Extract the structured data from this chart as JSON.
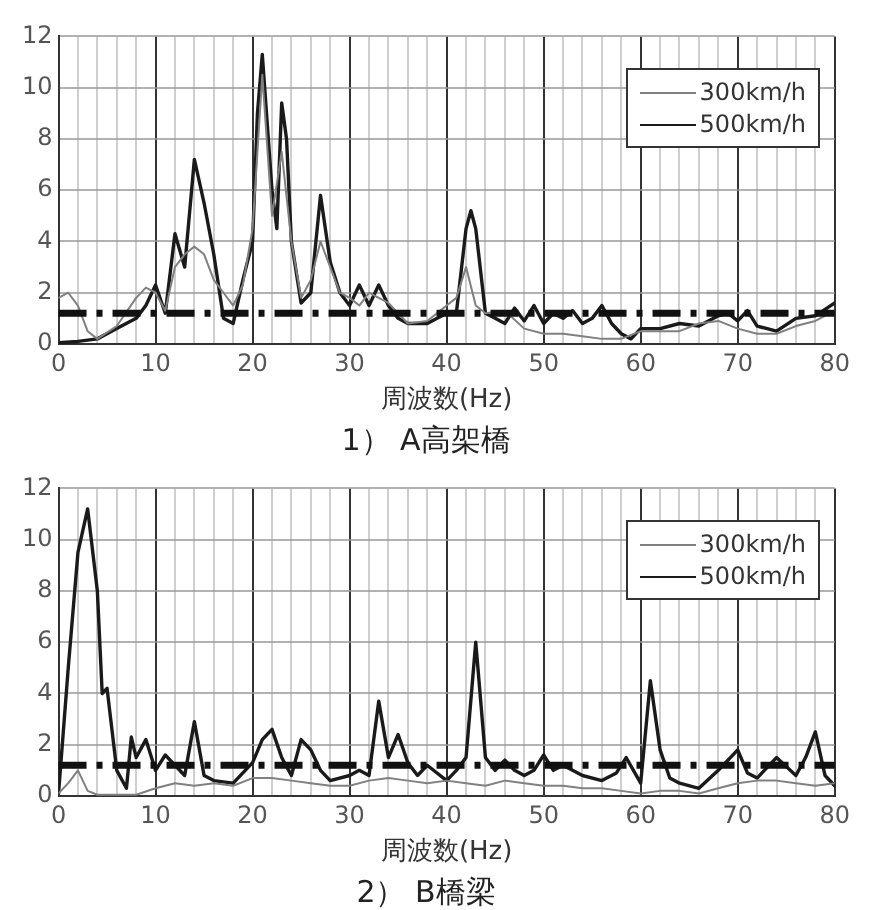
{
  "chart_data": [
    {
      "type": "line",
      "title": "1） A高架橋",
      "xlabel": "周波数(Hz)",
      "xlim": [
        0,
        80
      ],
      "xticks": [
        0,
        {
          "value": 2,
          "label": null
        },
        {
          "value": 4,
          "label": null
        },
        {
          "value": 6,
          "label": null
        },
        {
          "value": 8,
          "label": null
        },
        10,
        {
          "value": 12,
          "label": null
        },
        {
          "value": 14,
          "label": null
        },
        {
          "value": 16,
          "label": null
        },
        {
          "value": 18,
          "label": null
        },
        20,
        {
          "value": 22,
          "label": null
        },
        {
          "value": 24,
          "label": null
        },
        {
          "value": 26,
          "label": null
        },
        {
          "value": 28,
          "label": null
        },
        30,
        {
          "value": 32,
          "label": null
        },
        {
          "value": 34,
          "label": null
        },
        {
          "value": 36,
          "label": null
        },
        {
          "value": 38,
          "label": null
        },
        40,
        {
          "value": 42,
          "label": null
        },
        {
          "value": 44,
          "label": null
        },
        {
          "value": 46,
          "label": null
        },
        {
          "value": 48,
          "label": null
        },
        50,
        {
          "value": 52,
          "label": null
        },
        {
          "value": 54,
          "label": null
        },
        {
          "value": 56,
          "label": null
        },
        {
          "value": 58,
          "label": null
        },
        60,
        {
          "value": 62,
          "label": null
        },
        {
          "value": 64,
          "label": null
        },
        {
          "value": 66,
          "label": null
        },
        {
          "value": 68,
          "label": null
        },
        70,
        {
          "value": 72,
          "label": null
        },
        {
          "value": 74,
          "label": null
        },
        {
          "value": 76,
          "label": null
        },
        {
          "value": 78,
          "label": null
        },
        80
      ],
      "ylim": [
        0,
        12
      ],
      "yticks": [
        0,
        2,
        4,
        6,
        8,
        10,
        12
      ],
      "grid": true,
      "legend": "top right",
      "marker": "none",
      "ref_lines": [
        {
          "axis": "y",
          "value": 1.2,
          "color": "#111111",
          "line_style": "dashed"
        }
      ],
      "series": [
        {
          "name": "300km/h",
          "color": "#808080",
          "x": [
            0,
            1,
            2,
            3,
            4,
            6,
            8,
            9,
            10,
            11,
            12,
            13,
            14,
            15,
            16,
            17,
            18,
            19,
            20,
            21,
            22,
            23,
            24,
            25,
            26,
            27,
            28,
            29,
            30,
            31,
            32,
            33,
            34,
            35,
            36,
            38,
            40,
            41,
            42,
            43,
            44,
            46,
            48,
            50,
            52,
            54,
            56,
            58,
            60,
            62,
            64,
            66,
            68,
            70,
            72,
            74,
            76,
            78,
            80
          ],
          "values": [
            1.8,
            2.0,
            1.5,
            0.5,
            0.2,
            0.7,
            1.8,
            2.2,
            2.0,
            1.3,
            3.0,
            3.5,
            3.8,
            3.5,
            2.5,
            2.0,
            1.5,
            2.3,
            4.5,
            10.5,
            5,
            7.5,
            4,
            1.8,
            2.5,
            4.0,
            3.0,
            2.0,
            1.8,
            1.5,
            2.0,
            1.8,
            1.6,
            1.2,
            0.8,
            0.9,
            1.5,
            1.8,
            3.0,
            1.5,
            1.2,
            1.3,
            0.6,
            0.4,
            0.4,
            0.3,
            0.2,
            0.2,
            0.5,
            0.5,
            0.5,
            0.8,
            0.9,
            0.6,
            0.4,
            0.4,
            0.7,
            0.9,
            1.3
          ]
        },
        {
          "name": "500km/h",
          "color": "#1a1a1a",
          "x": [
            0,
            2,
            4,
            6,
            8,
            9,
            10,
            11,
            12,
            13,
            14,
            15,
            16,
            17,
            18,
            19,
            20,
            20.5,
            21,
            22,
            22.5,
            23,
            23.5,
            24,
            25,
            26,
            27,
            28,
            29,
            30,
            31,
            32,
            33,
            34,
            35,
            36,
            38,
            40,
            41,
            42,
            42.5,
            43,
            44,
            45,
            46,
            47,
            48,
            49,
            50,
            51,
            52,
            53,
            54,
            55,
            56,
            57,
            58,
            59,
            60,
            62,
            64,
            66,
            68,
            69,
            70,
            71,
            72,
            74,
            76,
            78,
            80
          ],
          "values": [
            0.05,
            0.1,
            0.2,
            0.6,
            1.0,
            1.5,
            2.3,
            1.2,
            4.3,
            3.0,
            7.2,
            5.5,
            3.5,
            1.0,
            0.8,
            2.5,
            4.0,
            9,
            11.3,
            6,
            4.5,
            9.4,
            8,
            4,
            1.6,
            2.0,
            5.8,
            3.2,
            2.0,
            1.5,
            2.3,
            1.5,
            2.3,
            1.5,
            1.0,
            0.8,
            0.8,
            1.2,
            1.2,
            4.5,
            5.2,
            4.5,
            1.2,
            1.0,
            0.8,
            1.4,
            0.9,
            1.5,
            0.8,
            1.2,
            1.0,
            1.3,
            0.8,
            1.0,
            1.5,
            0.8,
            0.4,
            0.2,
            0.6,
            0.6,
            0.8,
            0.7,
            1.1,
            1.2,
            0.9,
            1.3,
            0.7,
            0.5,
            1.0,
            1.1,
            1.6
          ]
        }
      ]
    },
    {
      "type": "line",
      "title": "2） B橋梁",
      "xlabel": "周波数(Hz)",
      "xlim": [
        0,
        80
      ],
      "xticks": [
        0,
        {
          "value": 2,
          "label": null
        },
        {
          "value": 4,
          "label": null
        },
        {
          "value": 6,
          "label": null
        },
        {
          "value": 8,
          "label": null
        },
        10,
        {
          "value": 12,
          "label": null
        },
        {
          "value": 14,
          "label": null
        },
        {
          "value": 16,
          "label": null
        },
        {
          "value": 18,
          "label": null
        },
        20,
        {
          "value": 22,
          "label": null
        },
        {
          "value": 24,
          "label": null
        },
        {
          "value": 26,
          "label": null
        },
        {
          "value": 28,
          "label": null
        },
        30,
        {
          "value": 32,
          "label": null
        },
        {
          "value": 34,
          "label": null
        },
        {
          "value": 36,
          "label": null
        },
        {
          "value": 38,
          "label": null
        },
        40,
        {
          "value": 42,
          "label": null
        },
        {
          "value": 44,
          "label": null
        },
        {
          "value": 46,
          "label": null
        },
        {
          "value": 48,
          "label": null
        },
        50,
        {
          "value": 52,
          "label": null
        },
        {
          "value": 54,
          "label": null
        },
        {
          "value": 56,
          "label": null
        },
        {
          "value": 58,
          "label": null
        },
        60,
        {
          "value": 62,
          "label": null
        },
        {
          "value": 64,
          "label": null
        },
        {
          "value": 66,
          "label": null
        },
        {
          "value": 68,
          "label": null
        },
        70,
        {
          "value": 72,
          "label": null
        },
        {
          "value": 74,
          "label": null
        },
        {
          "value": 76,
          "label": null
        },
        {
          "value": 78,
          "label": null
        },
        80
      ],
      "ylim": [
        0,
        12
      ],
      "yticks": [
        0,
        2,
        4,
        6,
        8,
        10,
        12
      ],
      "grid": true,
      "legend": "top right",
      "marker": "none",
      "ref_lines": [
        {
          "axis": "y",
          "value": 1.2,
          "color": "#111111",
          "line_style": "dashed"
        }
      ],
      "series": [
        {
          "name": "300km/h",
          "color": "#808080",
          "x": [
            0,
            1,
            2,
            3,
            4,
            6,
            8,
            10,
            12,
            14,
            16,
            18,
            20,
            22,
            24,
            26,
            28,
            30,
            32,
            34,
            36,
            38,
            40,
            42,
            44,
            46,
            48,
            50,
            52,
            54,
            56,
            58,
            60,
            62,
            64,
            66,
            68,
            70,
            72,
            74,
            76,
            78,
            80
          ],
          "values": [
            0.1,
            0.5,
            1.0,
            0.2,
            0.05,
            0.05,
            0.05,
            0.3,
            0.5,
            0.4,
            0.5,
            0.4,
            0.7,
            0.7,
            0.6,
            0.5,
            0.4,
            0.4,
            0.6,
            0.7,
            0.6,
            0.5,
            0.6,
            0.5,
            0.4,
            0.6,
            0.5,
            0.4,
            0.4,
            0.3,
            0.3,
            0.2,
            0.1,
            0.2,
            0.2,
            0.1,
            0.3,
            0.5,
            0.6,
            0.6,
            0.5,
            0.4,
            0.5
          ]
        },
        {
          "name": "500km/h",
          "color": "#1a1a1a",
          "x": [
            0,
            1,
            2,
            3,
            4,
            4.5,
            5,
            6,
            7,
            7.5,
            8,
            9,
            10,
            11,
            12,
            13,
            14,
            15,
            16,
            18,
            20,
            21,
            22,
            23,
            24,
            25,
            26,
            27,
            28,
            30,
            31,
            32,
            33,
            34,
            35,
            36,
            37,
            38,
            40,
            41,
            42,
            43,
            44,
            45,
            46,
            47,
            48,
            49,
            50,
            51,
            52,
            54,
            56,
            57.5,
            58.5,
            60,
            61,
            62,
            63,
            64,
            66,
            68,
            70,
            71,
            72,
            74,
            76,
            77,
            78,
            79,
            80
          ],
          "values": [
            0.1,
            5,
            9.5,
            11.2,
            8,
            4,
            4.2,
            1,
            0.3,
            2.3,
            1.5,
            2.2,
            1.0,
            1.6,
            1.2,
            0.8,
            2.9,
            0.8,
            0.6,
            0.5,
            1.3,
            2.2,
            2.6,
            1.5,
            0.8,
            2.2,
            1.8,
            1.0,
            0.6,
            0.8,
            1.0,
            0.8,
            3.7,
            1.5,
            2.4,
            1.3,
            0.8,
            1.2,
            0.6,
            1.0,
            1.5,
            6.0,
            1.5,
            1.0,
            1.4,
            1.0,
            0.8,
            1.0,
            1.6,
            1.0,
            1.2,
            0.8,
            0.6,
            0.9,
            1.5,
            0.5,
            4.5,
            1.8,
            0.7,
            0.5,
            0.3,
            1.0,
            1.8,
            0.9,
            0.7,
            1.5,
            0.8,
            1.5,
            2.5,
            0.8,
            0.4
          ]
        }
      ]
    }
  ]
}
